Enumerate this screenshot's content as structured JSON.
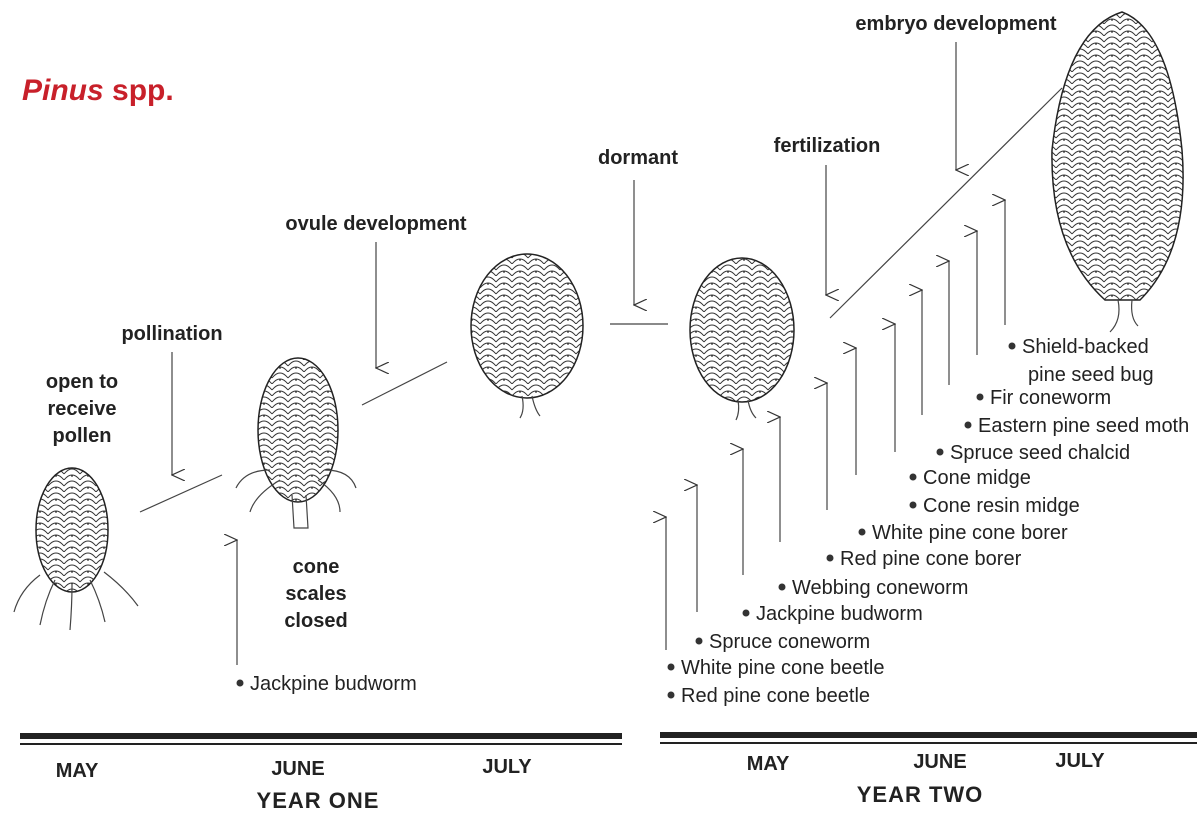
{
  "title": {
    "genus": "Pinus",
    "rest": "spp."
  },
  "stages": {
    "receptive": [
      "open to",
      "receive",
      "pollen"
    ],
    "closed": [
      "cone",
      "scales",
      "closed"
    ]
  },
  "events": [
    "pollination",
    "ovule development",
    "dormant",
    "fertilization",
    "embryo development"
  ],
  "year_one": {
    "label": "YEAR ONE",
    "months": [
      "MAY",
      "JUNE",
      "JULY"
    ],
    "insects": [
      "Jackpine budworm"
    ]
  },
  "year_two": {
    "label": "YEAR TWO",
    "months": [
      "MAY",
      "JUNE",
      "JULY"
    ],
    "insects": [
      "Red pine cone beetle",
      "White pine cone beetle",
      "Spruce coneworm",
      "Jackpine budworm",
      "Webbing coneworm",
      "Red pine cone borer",
      "White pine cone borer",
      "Cone resin midge",
      "Cone midge",
      "Spruce seed chalcid",
      "Eastern pine seed moth",
      "Fir coneworm",
      [
        "Shield-backed",
        "pine seed bug"
      ]
    ]
  }
}
